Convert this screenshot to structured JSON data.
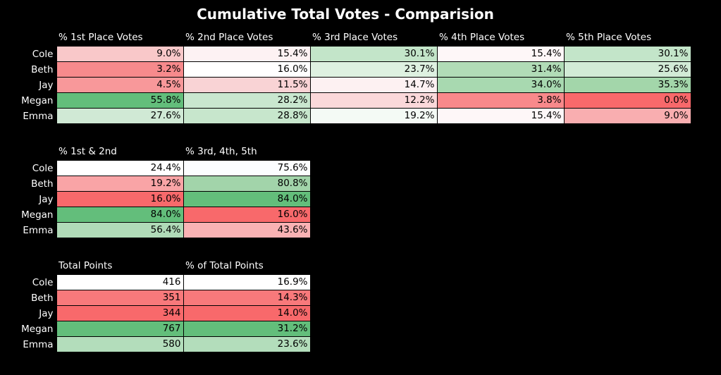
{
  "title": "Cumulative Total Votes - Comparision",
  "chart_data": [
    {
      "type": "table",
      "columns": [
        "% 1st Place Votes",
        "% 2nd Place Votes",
        "% 3rd Place Votes",
        "% 4th Place Votes",
        "% 5th Place Votes"
      ],
      "rows": [
        {
          "name": "Cole",
          "cells": [
            "9.0%",
            "15.4%",
            "30.1%",
            "15.4%",
            "30.1%"
          ],
          "colors": [
            "#f9c8c9",
            "#fdf2f3",
            "#c3e5c9",
            "#fef7f8",
            "#c3e5c9"
          ]
        },
        {
          "name": "Beth",
          "cells": [
            "3.2%",
            "16.0%",
            "23.7%",
            "31.4%",
            "25.6%"
          ],
          "colors": [
            "#f78a8c",
            "#ffffff",
            "#def1e1",
            "#b1dcb7",
            "#d2ebd6"
          ]
        },
        {
          "name": "Jay",
          "cells": [
            "4.5%",
            "11.5%",
            "14.7%",
            "34.0%",
            "35.3%"
          ],
          "colors": [
            "#f8989a",
            "#f9d3d5",
            "#fdf1f2",
            "#a8d9b0",
            "#a3d6aa"
          ]
        },
        {
          "name": "Megan",
          "cells": [
            "55.8%",
            "28.2%",
            "12.2%",
            "3.8%",
            "0.0%"
          ],
          "colors": [
            "#63be7b",
            "#c9e7cf",
            "#fbd8da",
            "#f8898b",
            "#f8696b"
          ]
        },
        {
          "name": "Emma",
          "cells": [
            "27.6%",
            "28.8%",
            "19.2%",
            "15.4%",
            "9.0%"
          ],
          "colors": [
            "#d0e9d5",
            "#c7e6cc",
            "#f4faf5",
            "#fef7f8",
            "#f9aeb0"
          ]
        }
      ]
    },
    {
      "type": "table",
      "columns": [
        "% 1st & 2nd",
        "% 3rd, 4th, 5th"
      ],
      "rows": [
        {
          "name": "Cole",
          "cells": [
            "24.4%",
            "75.6%"
          ],
          "colors": [
            "#ffffff",
            "#fcfdff"
          ]
        },
        {
          "name": "Beth",
          "cells": [
            "19.2%",
            "80.8%"
          ],
          "colors": [
            "#f9a4a6",
            "#a2d4aa"
          ]
        },
        {
          "name": "Jay",
          "cells": [
            "16.0%",
            "84.0%"
          ],
          "colors": [
            "#f8696b",
            "#63be7b"
          ]
        },
        {
          "name": "Megan",
          "cells": [
            "84.0%",
            "16.0%"
          ],
          "colors": [
            "#63be7b",
            "#f8696b"
          ]
        },
        {
          "name": "Emma",
          "cells": [
            "56.4%",
            "43.6%"
          ],
          "colors": [
            "#b0dbb8",
            "#f9b2b4"
          ]
        }
      ]
    },
    {
      "type": "table",
      "columns": [
        "Total Points",
        "% of Total Points"
      ],
      "rows": [
        {
          "name": "Cole",
          "cells": [
            "416",
            "16.9%"
          ],
          "colors": [
            "#ffffff",
            "#ffffff"
          ]
        },
        {
          "name": "Beth",
          "cells": [
            "351",
            "14.3%"
          ],
          "colors": [
            "#f8797b",
            "#f8797b"
          ]
        },
        {
          "name": "Jay",
          "cells": [
            "344",
            "14.0%"
          ],
          "colors": [
            "#f8696b",
            "#f8696b"
          ]
        },
        {
          "name": "Megan",
          "cells": [
            "767",
            "31.2%"
          ],
          "colors": [
            "#63be7b",
            "#63be7b"
          ]
        },
        {
          "name": "Emma",
          "cells": [
            "580",
            "23.6%"
          ],
          "colors": [
            "#b3ddbb",
            "#b3ddbb"
          ]
        }
      ]
    }
  ]
}
